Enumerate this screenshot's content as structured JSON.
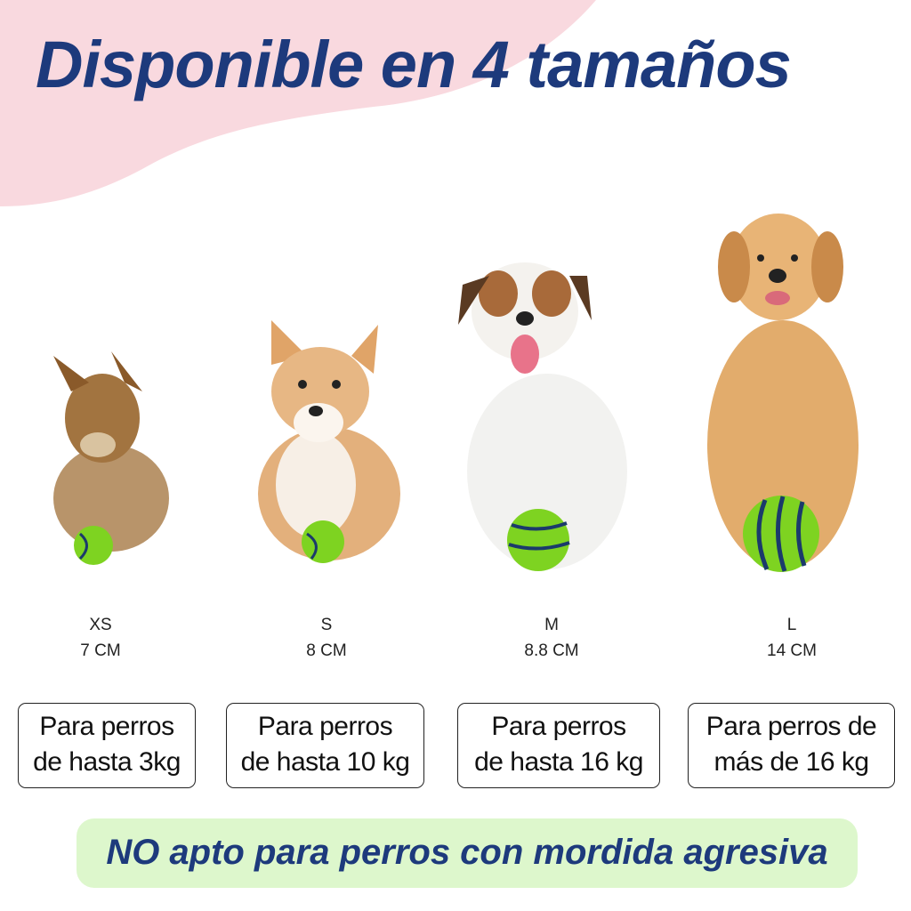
{
  "title": "Disponible en 4 tamaños",
  "sizes": [
    {
      "size": "XS",
      "diameter": "7 CM",
      "label_line1": "Para perros",
      "label_line2": "de hasta 3kg"
    },
    {
      "size": "S",
      "diameter": "8 CM",
      "label_line1": "Para perros",
      "label_line2": "de hasta 10 kg"
    },
    {
      "size": "M",
      "diameter": "8.8 CM",
      "label_line1": "Para perros",
      "label_line2": "de hasta 16 kg"
    },
    {
      "size": "L",
      "diameter": "14 CM",
      "label_line1": "Para perros de",
      "label_line2": "más de 16 kg"
    }
  ],
  "warning": "NO apto para perros con mordida agresiva",
  "colors": {
    "title": "#1d3a7c",
    "pink_blob": "#f9d9df",
    "banner": "#ddf7cc",
    "ball": "#7ed321",
    "ball_stripe": "#1b3a6b"
  }
}
